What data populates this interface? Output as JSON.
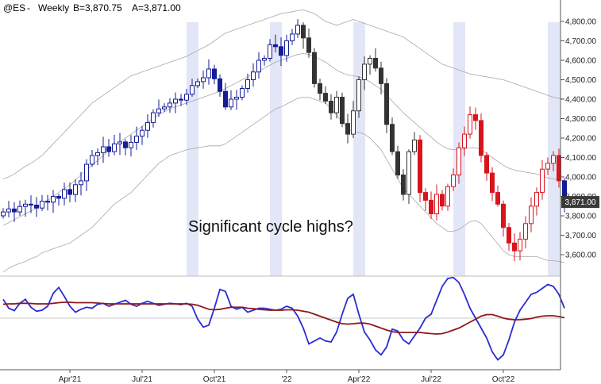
{
  "header": {
    "symbol": "@ES",
    "timeframe": "Weekly",
    "bid": "B=3,870.75",
    "ask": "A=3,871.00"
  },
  "annotation": "Significant cycle highs?",
  "last_price_label": "3,871.00",
  "colors": {
    "blue": "#141c96",
    "black": "#333333",
    "red": "#d8141c",
    "highlight": "#e3e6f6",
    "band": "#a8a8a8",
    "osc_blue": "#2b2bd6",
    "osc_red": "#8c1a1a",
    "price_tag_bg": "#3a3a3a"
  },
  "chart_data": [
    {
      "type": "candlestick",
      "title": "",
      "ylim": [
        3500,
        4850
      ],
      "x_ticks": [
        "Apr'21",
        "Jul'21",
        "Oct'21",
        "'22",
        "Apr'22",
        "Jul'22",
        "Oct'22"
      ],
      "x_tick_weeks": [
        12,
        25,
        38,
        51,
        64,
        77,
        90
      ],
      "y_ticks": [
        "3,600.00",
        "3,700.00",
        "3,800.00",
        "3,900.00",
        "4,000.00",
        "4,100.00",
        "4,200.00",
        "4,300.00",
        "4,400.00",
        "4,500.00",
        "4,600.00",
        "4,700.00",
        "4,800.00"
      ],
      "y_tick_values": [
        3600,
        3700,
        3800,
        3900,
        4000,
        4100,
        4200,
        4300,
        4400,
        4500,
        4600,
        4700,
        4800
      ],
      "last_price": 3871,
      "highlight_weeks": [
        34,
        49,
        64,
        82,
        99
      ],
      "color_segments": [
        {
          "from": 0,
          "to": 53,
          "color": "blue"
        },
        {
          "from": 54,
          "to": 74,
          "color": "black"
        },
        {
          "from": 75,
          "to": 100,
          "color": "red"
        }
      ],
      "series": [
        {
          "name": "price",
          "values": [
            3820,
            3835,
            3820,
            3848,
            3860,
            3855,
            3840,
            3875,
            3870,
            3900,
            3890,
            3935,
            3910,
            3960,
            3980,
            4065,
            4110,
            4125,
            4155,
            4130,
            4170,
            4180,
            4150,
            4178,
            4210,
            4240,
            4280,
            4330,
            4350,
            4360,
            4380,
            4400,
            4395,
            4425,
            4470,
            4490,
            4510,
            4555,
            4505,
            4440,
            4360,
            4400,
            4410,
            4455,
            4500,
            4540,
            4600,
            4610,
            4680,
            4670,
            4625,
            4700,
            4735,
            4780,
            4715,
            4640,
            4480,
            4430,
            4390,
            4330,
            4410,
            4275,
            4220,
            4340,
            4500,
            4580,
            4610,
            4560,
            4480,
            4270,
            4130,
            4010,
            3910,
            4130,
            4190,
            3920,
            3880,
            3810,
            3910,
            3850,
            3950,
            4010,
            4150,
            4220,
            4320,
            4290,
            4110,
            4020,
            3920,
            3860,
            3740,
            3660,
            3620,
            3680,
            3760,
            3850,
            3920,
            4040,
            4070,
            4110,
            3980,
            3871
          ]
        }
      ],
      "bands": {
        "upper": [
          3990,
          4000,
          4015,
          4035,
          4055,
          4070,
          4090,
          4110,
          4140,
          4170,
          4200,
          4230,
          4260,
          4290,
          4320,
          4350,
          4380,
          4400,
          4420,
          4440,
          4460,
          4480,
          4500,
          4520,
          4530,
          4540,
          4550,
          4560,
          4570,
          4580,
          4590,
          4600,
          4610,
          4620,
          4635,
          4650,
          4665,
          4680,
          4700,
          4720,
          4740,
          4750,
          4760,
          4770,
          4780,
          4790,
          4800,
          4810,
          4820,
          4830,
          4840,
          4845,
          4850,
          4855,
          4860,
          4850,
          4840,
          4820,
          4800,
          4790,
          4780,
          4790,
          4800,
          4810,
          4800,
          4790,
          4780,
          4770,
          4760,
          4750,
          4740,
          4730,
          4720,
          4700,
          4680,
          4660,
          4640,
          4620,
          4600,
          4580,
          4570,
          4560,
          4550,
          4540,
          4530,
          4525,
          4520,
          4515,
          4510,
          4505,
          4500,
          4490,
          4480,
          4470,
          4460,
          4450,
          4440,
          4430,
          4420,
          4410,
          4405,
          4400
        ],
        "middle": [
          3750,
          3765,
          3780,
          3795,
          3810,
          3825,
          3840,
          3860,
          3880,
          3900,
          3920,
          3940,
          3960,
          3985,
          4010,
          4035,
          4060,
          4085,
          4110,
          4135,
          4160,
          4180,
          4200,
          4220,
          4240,
          4260,
          4280,
          4300,
          4320,
          4335,
          4350,
          4360,
          4370,
          4380,
          4390,
          4400,
          4410,
          4420,
          4430,
          4440,
          4455,
          4470,
          4485,
          4500,
          4515,
          4530,
          4545,
          4560,
          4575,
          4590,
          4600,
          4610,
          4620,
          4630,
          4635,
          4630,
          4620,
          4605,
          4590,
          4570,
          4550,
          4535,
          4525,
          4520,
          4515,
          4505,
          4490,
          4470,
          4450,
          4420,
          4390,
          4360,
          4330,
          4305,
          4280,
          4255,
          4230,
          4205,
          4180,
          4160,
          4145,
          4140,
          4140,
          4145,
          4150,
          4150,
          4140,
          4120,
          4100,
          4080,
          4060,
          4045,
          4035,
          4030,
          4025,
          4020,
          4015,
          4005,
          3995,
          3990,
          3985,
          3980
        ],
        "lower": [
          3510,
          3530,
          3545,
          3555,
          3565,
          3580,
          3590,
          3610,
          3620,
          3630,
          3640,
          3650,
          3660,
          3680,
          3700,
          3720,
          3740,
          3770,
          3800,
          3830,
          3860,
          3880,
          3900,
          3920,
          3950,
          3980,
          4010,
          4040,
          4070,
          4090,
          4110,
          4120,
          4130,
          4140,
          4145,
          4150,
          4155,
          4160,
          4160,
          4160,
          4170,
          4190,
          4210,
          4230,
          4250,
          4270,
          4290,
          4310,
          4330,
          4350,
          4360,
          4375,
          4390,
          4405,
          4410,
          4410,
          4400,
          4390,
          4380,
          4350,
          4320,
          4280,
          4250,
          4230,
          4230,
          4220,
          4200,
          4170,
          4140,
          4090,
          4040,
          3990,
          3940,
          3910,
          3880,
          3850,
          3820,
          3790,
          3760,
          3740,
          3720,
          3720,
          3730,
          3750,
          3770,
          3775,
          3760,
          3725,
          3690,
          3655,
          3620,
          3600,
          3590,
          3590,
          3590,
          3590,
          3590,
          3580,
          3570,
          3570,
          3565,
          3560
        ]
      }
    },
    {
      "type": "line",
      "title": "",
      "zero_line": 0,
      "ylim": [
        -2.1,
        2.1
      ],
      "series": [
        {
          "name": "",
          "color": "osc_blue",
          "values": [
            0.95,
            0.5,
            0.38,
            0.75,
            0.95,
            0.55,
            0.35,
            0.4,
            0.6,
            1.25,
            1.55,
            1.1,
            0.6,
            0.3,
            0.45,
            0.55,
            0.5,
            0.7,
            0.75,
            0.6,
            0.7,
            0.8,
            0.9,
            0.7,
            0.6,
            0.75,
            0.85,
            0.75,
            0.65,
            0.7,
            0.75,
            0.72,
            0.68,
            0.75,
            0.6,
            -0.05,
            -0.45,
            -0.35,
            0.5,
            1.45,
            1.35,
            0.6,
            0.45,
            0.55,
            0.3,
            0.4,
            0.5,
            0.5,
            0.45,
            0.4,
            0.45,
            0.6,
            0.5,
            0.1,
            -0.5,
            -1.3,
            -1.15,
            -1.0,
            -1.15,
            -1.2,
            -0.7,
            0.2,
            1.0,
            1.2,
            0.2,
            -0.7,
            -1.1,
            -1.6,
            -1.85,
            -1.45,
            -0.55,
            -0.65,
            -1.1,
            -1.3,
            -0.9,
            -0.5,
            0.0,
            0.2,
            0.9,
            1.6,
            2.0,
            2.05,
            1.8,
            1.2,
            0.5,
            0.0,
            -0.5,
            -1.0,
            -1.7,
            -2.1,
            -1.85,
            -1.1,
            -0.2,
            0.4,
            0.8,
            1.2,
            1.3,
            1.5,
            1.7,
            1.6,
            1.2,
            0.5
          ]
        },
        {
          "name": "",
          "color": "osc_red",
          "values": [
            0.7,
            0.72,
            0.72,
            0.75,
            0.75,
            0.74,
            0.72,
            0.72,
            0.72,
            0.75,
            0.78,
            0.8,
            0.8,
            0.78,
            0.78,
            0.78,
            0.78,
            0.76,
            0.74,
            0.72,
            0.72,
            0.72,
            0.72,
            0.72,
            0.72,
            0.72,
            0.72,
            0.72,
            0.72,
            0.72,
            0.72,
            0.72,
            0.72,
            0.72,
            0.7,
            0.65,
            0.55,
            0.45,
            0.42,
            0.45,
            0.5,
            0.55,
            0.55,
            0.55,
            0.5,
            0.48,
            0.45,
            0.42,
            0.4,
            0.4,
            0.4,
            0.42,
            0.42,
            0.4,
            0.35,
            0.3,
            0.2,
            0.1,
            0.0,
            -0.1,
            -0.2,
            -0.28,
            -0.3,
            -0.28,
            -0.25,
            -0.25,
            -0.3,
            -0.4,
            -0.5,
            -0.6,
            -0.68,
            -0.72,
            -0.72,
            -0.72,
            -0.72,
            -0.72,
            -0.75,
            -0.78,
            -0.8,
            -0.78,
            -0.7,
            -0.6,
            -0.5,
            -0.35,
            -0.2,
            -0.05,
            0.1,
            0.18,
            0.18,
            0.1,
            0.0,
            -0.05,
            -0.08,
            -0.08,
            -0.05,
            -0.02,
            0.05,
            0.1,
            0.12,
            0.12,
            0.08,
            0.02
          ]
        }
      ]
    }
  ]
}
